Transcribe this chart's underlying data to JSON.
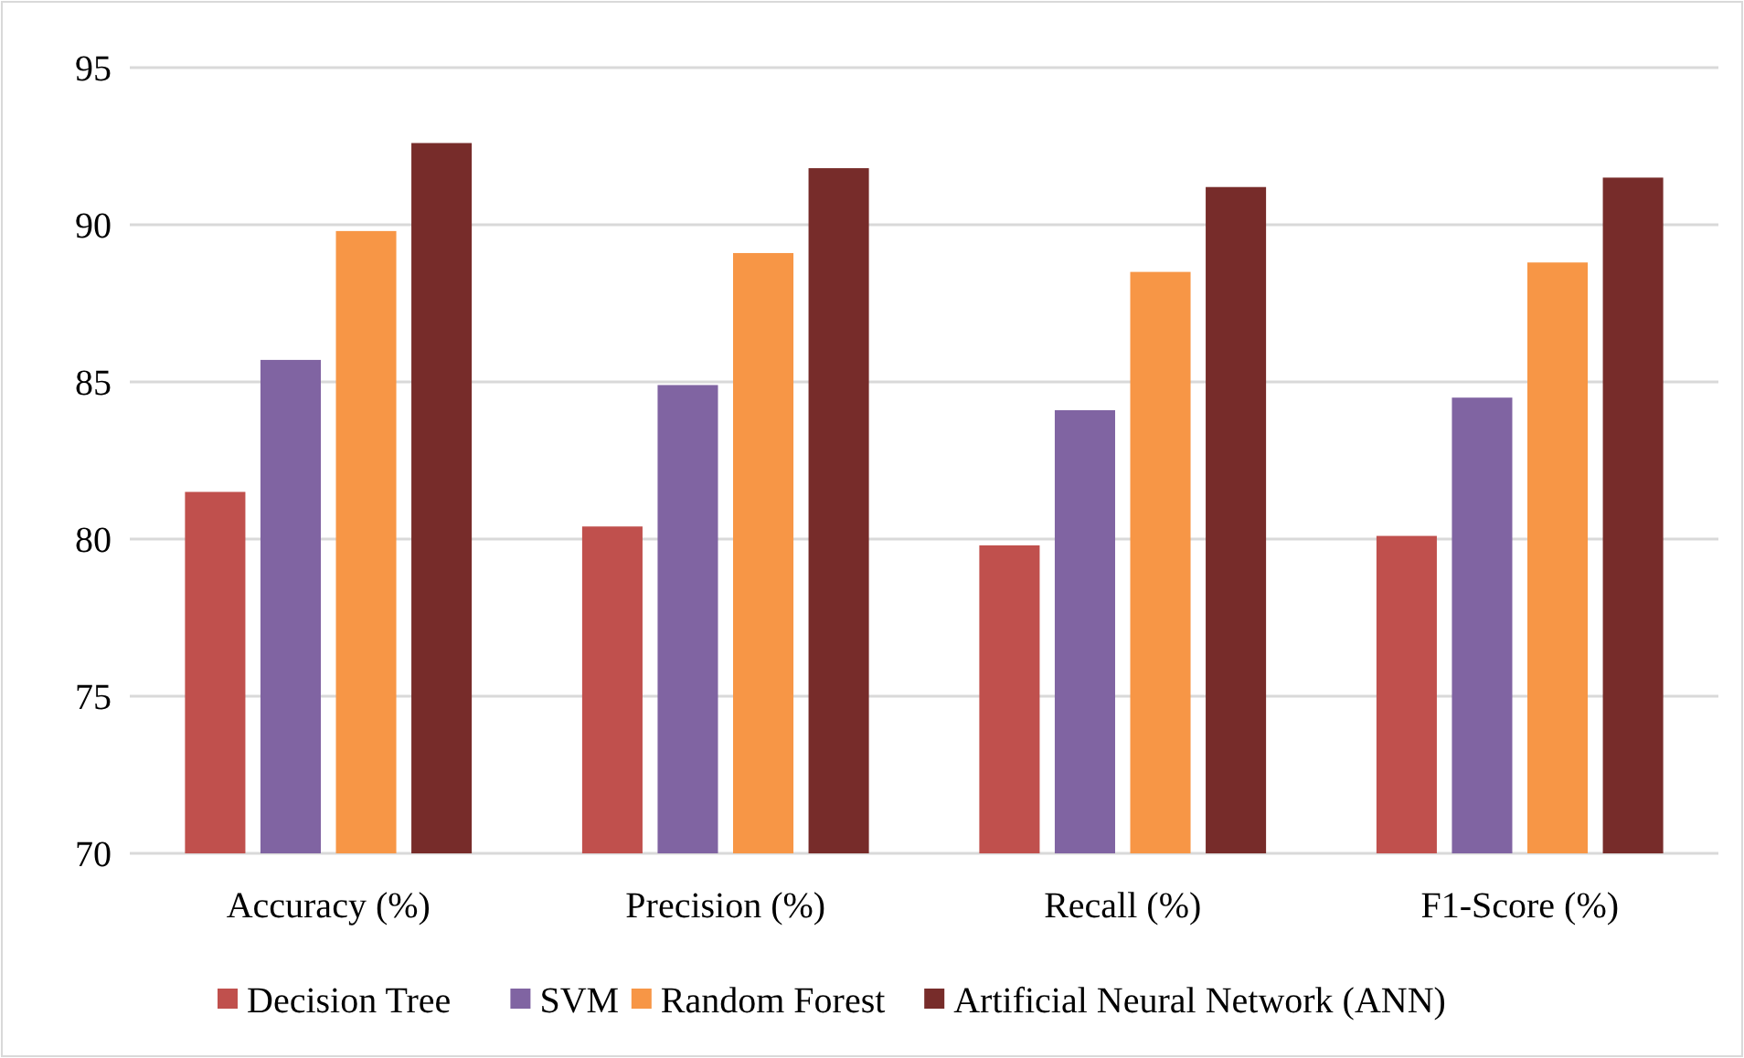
{
  "chart_data": {
    "type": "bar",
    "categories": [
      "Accuracy (%)",
      "Precision (%)",
      "Recall (%)",
      "F1-Score (%)"
    ],
    "series": [
      {
        "name": "Decision Tree",
        "color": "#c0504d",
        "values": [
          81.5,
          80.4,
          79.8,
          80.1
        ]
      },
      {
        "name": "SVM",
        "color": "#8064a2",
        "values": [
          85.7,
          84.9,
          84.1,
          84.5
        ]
      },
      {
        "name": "Random Forest",
        "color": "#f79646",
        "values": [
          89.8,
          89.1,
          88.5,
          88.8
        ]
      },
      {
        "name": "Artificial Neural Network (ANN)",
        "color": "#772c2a",
        "values": [
          92.6,
          91.8,
          91.2,
          91.5
        ]
      }
    ],
    "ylim": [
      70,
      95
    ],
    "yticks": [
      70,
      75,
      80,
      85,
      90,
      95
    ],
    "grid": "y",
    "legend": "bottom"
  }
}
